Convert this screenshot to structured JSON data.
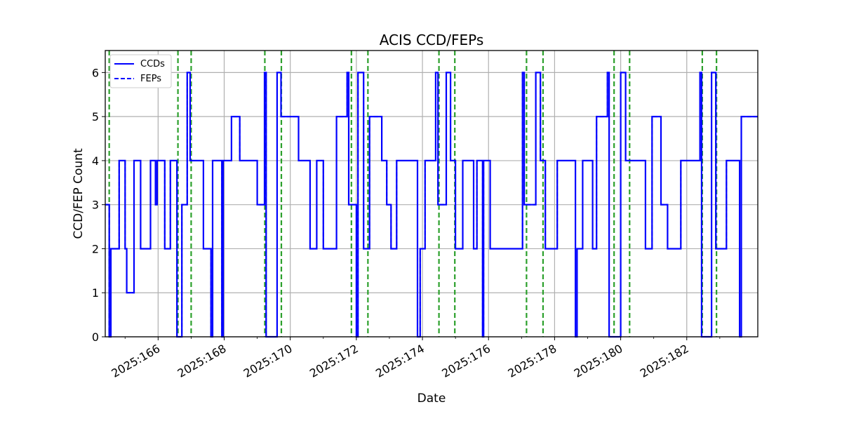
{
  "chart_data": {
    "type": "line",
    "title": "ACIS CCD/FEPs",
    "xlabel": "Date",
    "ylabel": "CCD/FEP Count",
    "x_unit": "day of year 2025",
    "xlim": [
      164.4,
      184.15
    ],
    "ylim": [
      0,
      6.5
    ],
    "yticks": [
      0,
      1,
      2,
      3,
      4,
      5,
      6
    ],
    "xticks": [
      {
        "value": 166,
        "label": "2025:166"
      },
      {
        "value": 168,
        "label": "2025:168"
      },
      {
        "value": 170,
        "label": "2025:170"
      },
      {
        "value": 172,
        "label": "2025:172"
      },
      {
        "value": 174,
        "label": "2025:174"
      },
      {
        "value": 176,
        "label": "2025:176"
      },
      {
        "value": 178,
        "label": "2025:178"
      },
      {
        "value": 180,
        "label": "2025:180"
      },
      {
        "value": 182,
        "label": "2025:182"
      }
    ],
    "minor_xticks": [
      165,
      167,
      169,
      171,
      173,
      175,
      177,
      179,
      181,
      183
    ],
    "grid": true,
    "legend_position": "upper-left",
    "series": [
      {
        "name": "CCDs",
        "color": "#0000ff",
        "linestyle": "solid",
        "step": true,
        "points": [
          [
            164.4,
            3
          ],
          [
            164.52,
            0
          ],
          [
            164.57,
            2
          ],
          [
            164.82,
            4
          ],
          [
            165.0,
            2
          ],
          [
            165.05,
            1
          ],
          [
            165.27,
            4
          ],
          [
            165.47,
            2
          ],
          [
            165.77,
            4
          ],
          [
            165.92,
            3
          ],
          [
            165.97,
            4
          ],
          [
            166.2,
            2
          ],
          [
            166.37,
            4
          ],
          [
            166.57,
            0
          ],
          [
            166.72,
            3
          ],
          [
            166.88,
            6
          ],
          [
            166.97,
            4
          ],
          [
            167.37,
            2
          ],
          [
            167.6,
            0
          ],
          [
            167.65,
            4
          ],
          [
            167.93,
            0
          ],
          [
            167.97,
            4
          ],
          [
            168.22,
            5
          ],
          [
            168.47,
            4
          ],
          [
            169.0,
            3
          ],
          [
            169.22,
            6
          ],
          [
            169.27,
            0
          ],
          [
            169.6,
            6
          ],
          [
            169.72,
            5
          ],
          [
            170.25,
            4
          ],
          [
            170.6,
            2
          ],
          [
            170.8,
            4
          ],
          [
            171.0,
            2
          ],
          [
            171.4,
            5
          ],
          [
            171.72,
            6
          ],
          [
            171.77,
            3
          ],
          [
            172.0,
            0
          ],
          [
            172.05,
            6
          ],
          [
            172.22,
            2
          ],
          [
            172.4,
            5
          ],
          [
            172.77,
            4
          ],
          [
            172.92,
            3
          ],
          [
            173.05,
            2
          ],
          [
            173.22,
            4
          ],
          [
            173.85,
            0
          ],
          [
            173.93,
            2
          ],
          [
            174.08,
            4
          ],
          [
            174.4,
            6
          ],
          [
            174.47,
            3
          ],
          [
            174.72,
            6
          ],
          [
            174.85,
            4
          ],
          [
            175.0,
            2
          ],
          [
            175.22,
            4
          ],
          [
            175.55,
            2
          ],
          [
            175.65,
            4
          ],
          [
            175.82,
            0
          ],
          [
            175.85,
            4
          ],
          [
            176.05,
            2
          ],
          [
            177.03,
            6
          ],
          [
            177.08,
            3
          ],
          [
            177.43,
            6
          ],
          [
            177.57,
            4
          ],
          [
            177.72,
            2
          ],
          [
            178.08,
            4
          ],
          [
            178.63,
            0
          ],
          [
            178.68,
            2
          ],
          [
            178.85,
            4
          ],
          [
            179.15,
            2
          ],
          [
            179.27,
            5
          ],
          [
            179.6,
            6
          ],
          [
            179.65,
            0
          ],
          [
            180.0,
            6
          ],
          [
            180.15,
            4
          ],
          [
            180.75,
            2
          ],
          [
            180.95,
            5
          ],
          [
            181.22,
            3
          ],
          [
            181.42,
            2
          ],
          [
            181.82,
            4
          ],
          [
            182.4,
            6
          ],
          [
            182.45,
            0
          ],
          [
            182.75,
            6
          ],
          [
            182.88,
            2
          ],
          [
            183.2,
            4
          ],
          [
            183.6,
            0
          ],
          [
            183.65,
            5
          ],
          [
            184.15,
            5
          ]
        ]
      },
      {
        "name": "FEPs",
        "color": "#0000ff",
        "linestyle": "dashed",
        "step": true,
        "points": [
          [
            164.4,
            3
          ],
          [
            164.52,
            0
          ],
          [
            164.57,
            2
          ],
          [
            164.82,
            4
          ],
          [
            165.0,
            2
          ],
          [
            165.05,
            1
          ],
          [
            165.27,
            4
          ],
          [
            165.47,
            2
          ],
          [
            165.77,
            4
          ],
          [
            165.92,
            3
          ],
          [
            165.97,
            4
          ],
          [
            166.2,
            2
          ],
          [
            166.37,
            4
          ],
          [
            166.57,
            0
          ],
          [
            166.72,
            3
          ],
          [
            166.88,
            6
          ],
          [
            166.97,
            4
          ],
          [
            167.37,
            2
          ],
          [
            167.6,
            0
          ],
          [
            167.65,
            4
          ],
          [
            167.93,
            0
          ],
          [
            167.97,
            4
          ],
          [
            168.22,
            5
          ],
          [
            168.47,
            4
          ],
          [
            169.0,
            3
          ],
          [
            169.22,
            6
          ],
          [
            169.27,
            0
          ],
          [
            169.6,
            6
          ],
          [
            169.72,
            5
          ],
          [
            170.25,
            4
          ],
          [
            170.6,
            2
          ],
          [
            170.8,
            4
          ],
          [
            171.0,
            2
          ],
          [
            171.4,
            5
          ],
          [
            171.72,
            6
          ],
          [
            171.77,
            3
          ],
          [
            172.0,
            0
          ],
          [
            172.05,
            6
          ],
          [
            172.22,
            2
          ],
          [
            172.4,
            5
          ],
          [
            172.77,
            4
          ],
          [
            172.92,
            3
          ],
          [
            173.05,
            2
          ],
          [
            173.22,
            4
          ],
          [
            173.85,
            0
          ],
          [
            173.93,
            2
          ],
          [
            174.08,
            4
          ],
          [
            174.4,
            6
          ],
          [
            174.47,
            3
          ],
          [
            174.72,
            6
          ],
          [
            174.85,
            4
          ],
          [
            175.0,
            2
          ],
          [
            175.22,
            4
          ],
          [
            175.55,
            2
          ],
          [
            175.65,
            4
          ],
          [
            175.82,
            0
          ],
          [
            175.85,
            4
          ],
          [
            176.05,
            2
          ],
          [
            177.03,
            6
          ],
          [
            177.08,
            3
          ],
          [
            177.43,
            6
          ],
          [
            177.57,
            4
          ],
          [
            177.72,
            2
          ],
          [
            178.08,
            4
          ],
          [
            178.63,
            0
          ],
          [
            178.68,
            2
          ],
          [
            178.85,
            4
          ],
          [
            179.15,
            2
          ],
          [
            179.27,
            5
          ],
          [
            179.6,
            6
          ],
          [
            179.65,
            0
          ],
          [
            180.0,
            6
          ],
          [
            180.15,
            4
          ],
          [
            180.75,
            2
          ],
          [
            180.95,
            5
          ],
          [
            181.22,
            3
          ],
          [
            181.42,
            2
          ],
          [
            181.82,
            4
          ],
          [
            182.4,
            6
          ],
          [
            182.45,
            0
          ],
          [
            182.75,
            6
          ],
          [
            182.88,
            2
          ],
          [
            183.2,
            4
          ],
          [
            183.6,
            0
          ],
          [
            183.65,
            5
          ],
          [
            184.15,
            5
          ]
        ]
      }
    ],
    "vertical_markers": {
      "color": "#2ca02c",
      "linestyle": "dashed",
      "x": [
        164.52,
        166.6,
        167.0,
        169.23,
        169.73,
        171.85,
        172.35,
        174.5,
        174.98,
        177.15,
        177.65,
        179.8,
        180.27,
        182.47,
        182.9
      ]
    }
  }
}
